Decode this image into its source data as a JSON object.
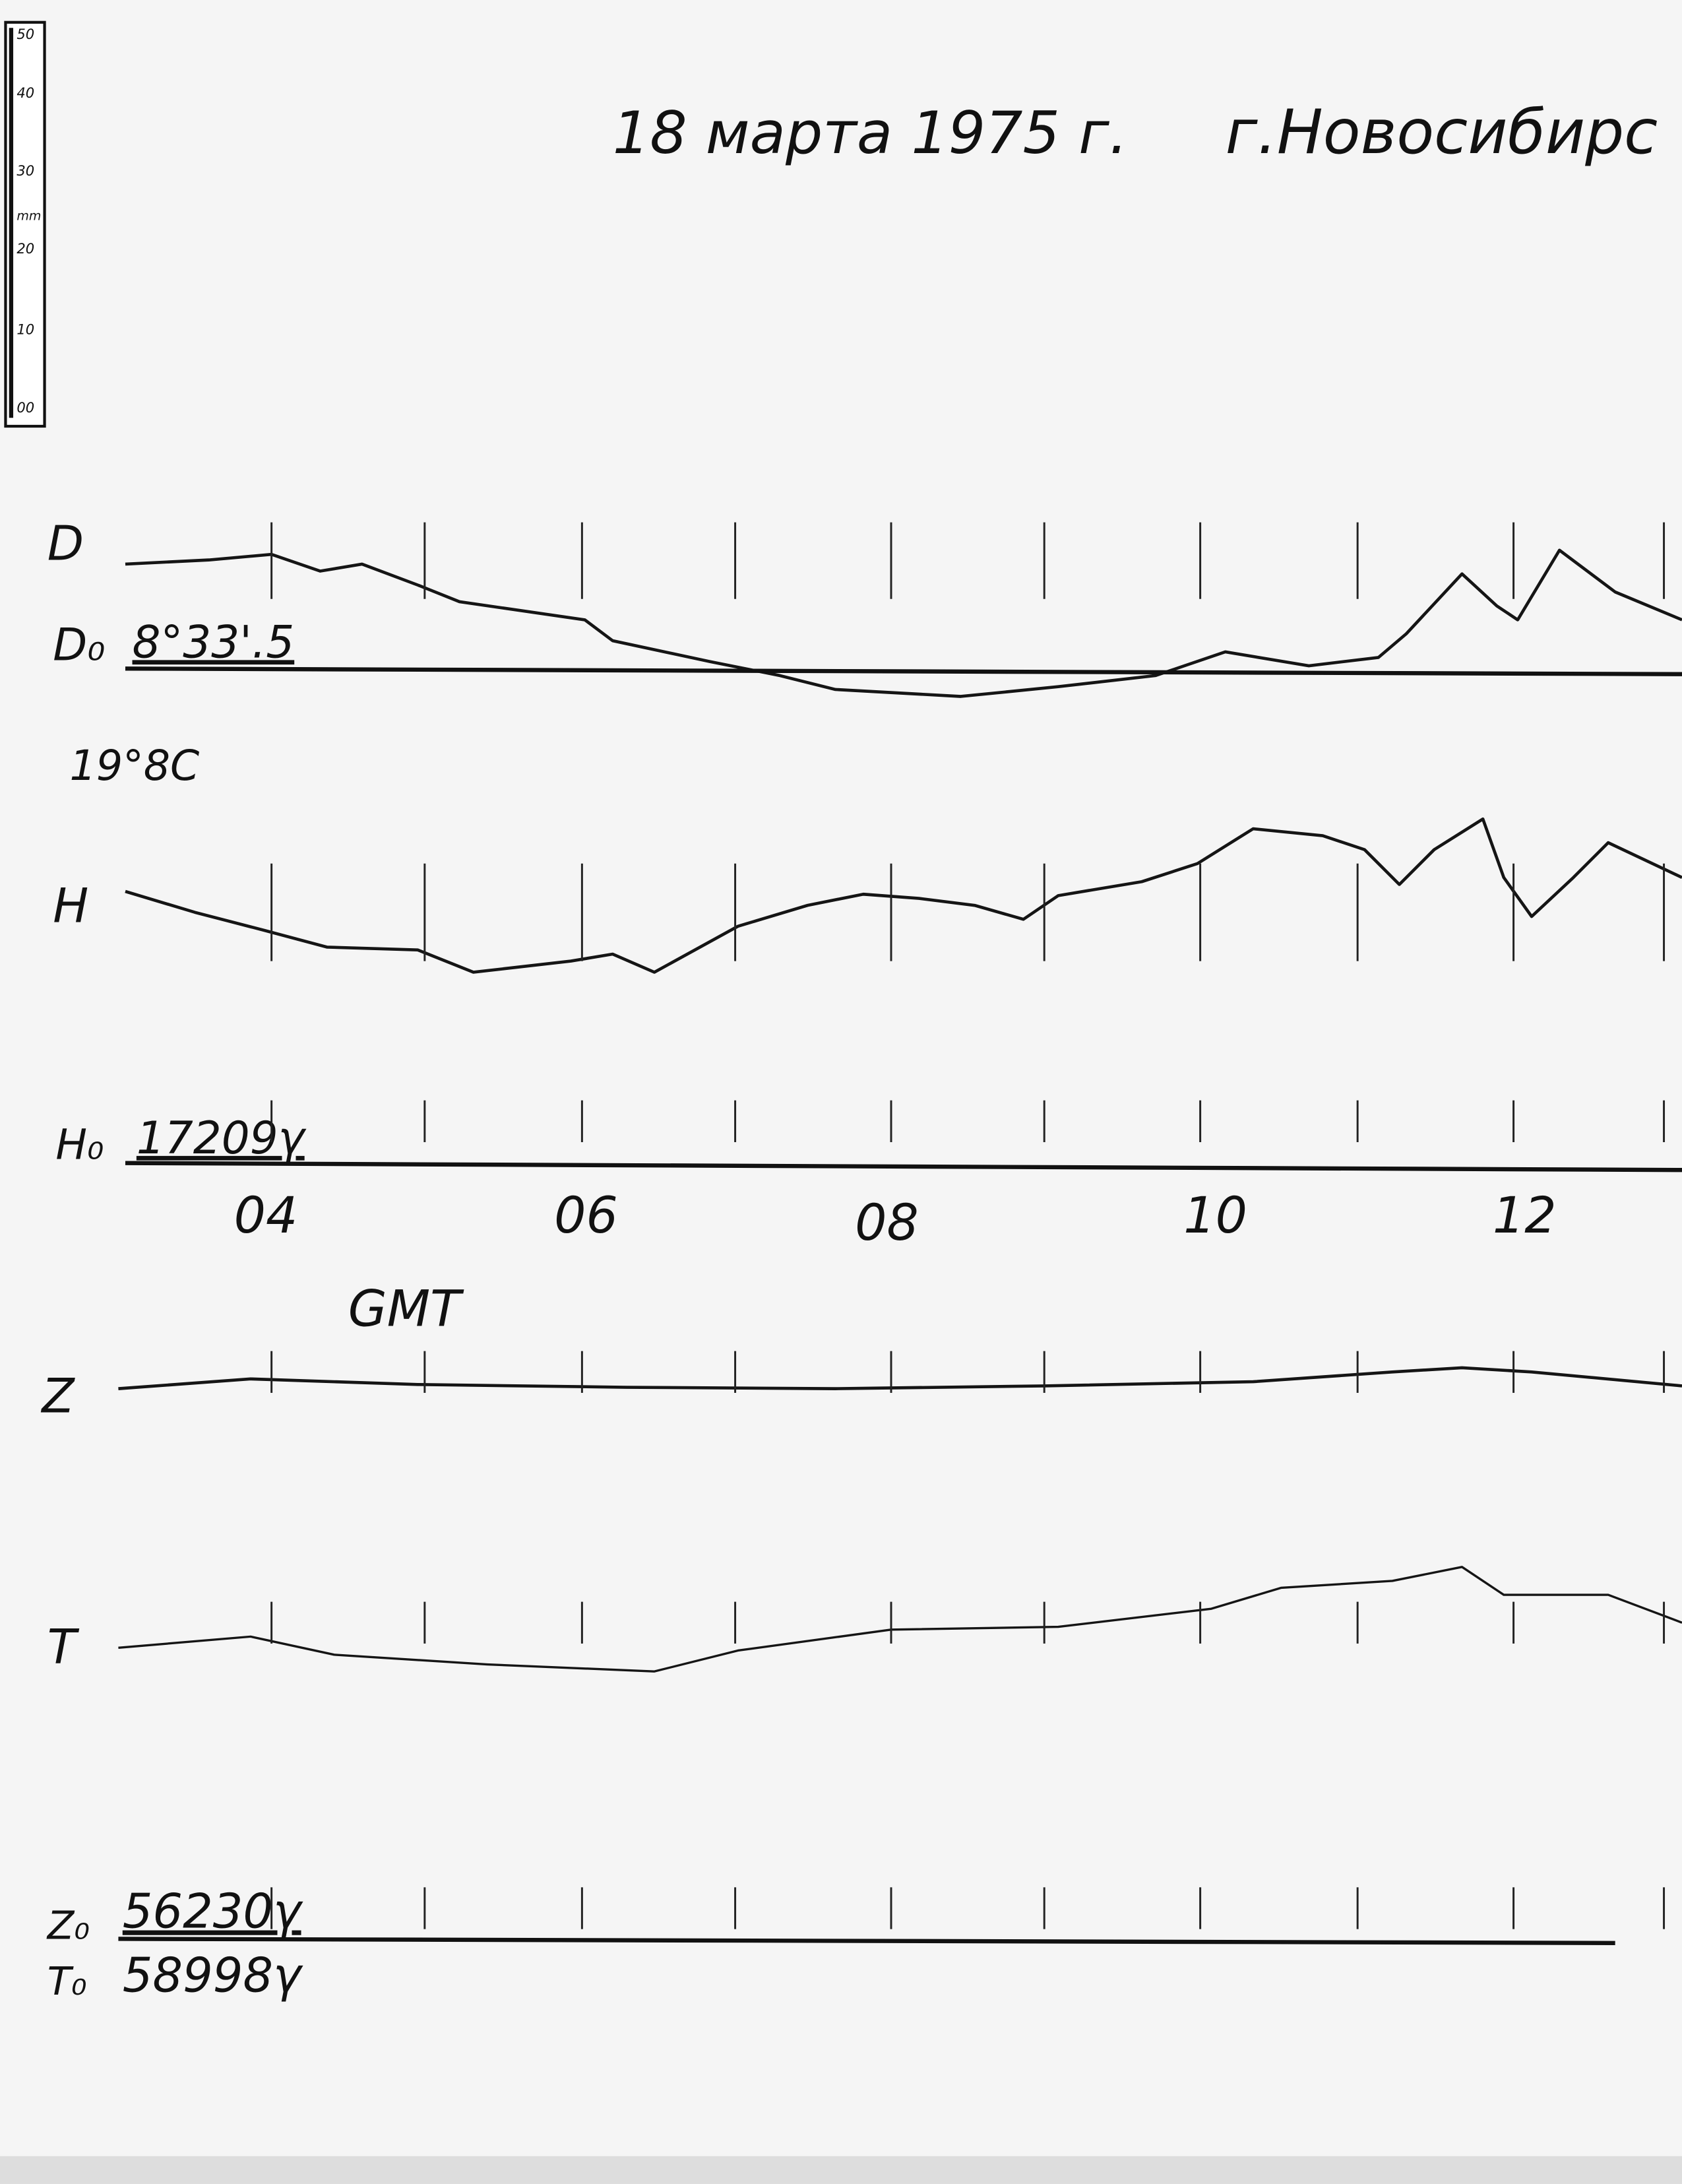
{
  "header": {
    "date": "18 марта 1975 г.",
    "place": "г.Новосибирс"
  },
  "scale": {
    "labels": [
      "50",
      "40",
      "30",
      "20",
      "10",
      "00"
    ],
    "unit": "mm"
  },
  "traces": {
    "d": {
      "label": "D",
      "base_label": "D₀",
      "base_value": "8°33'.5"
    },
    "h": {
      "label": "H",
      "temperature": "19°8C",
      "base_label": "H₀",
      "base_value": "17209γ"
    },
    "z": {
      "label": "Z",
      "base_label": "Z₀",
      "base_value": "56230γ"
    },
    "t": {
      "label": "T",
      "base_label": "T₀",
      "base_value": "58998γ"
    }
  },
  "time_axis": {
    "labels": [
      "04",
      "06",
      "08",
      "10",
      "12"
    ],
    "unit": "GMT"
  }
}
